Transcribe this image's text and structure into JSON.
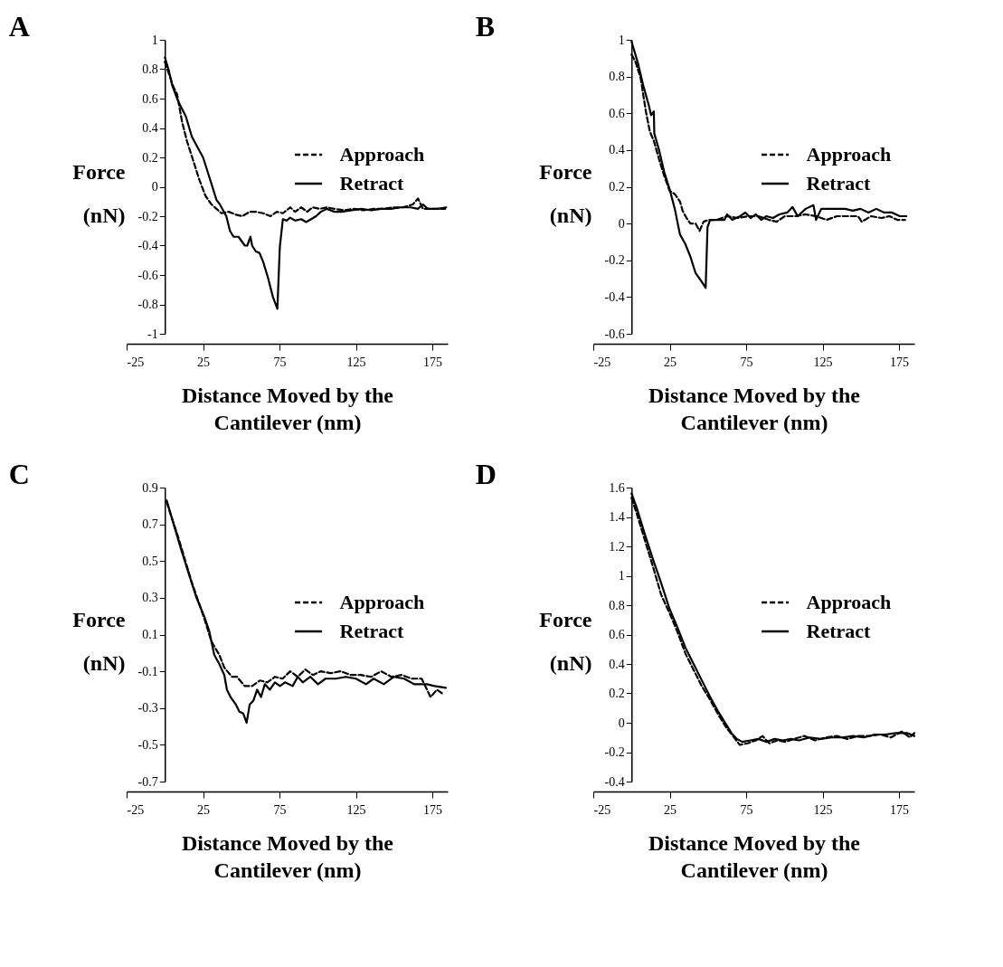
{
  "chart_data": [
    {
      "type": "line",
      "title": "A",
      "xlabel": "Distance Moved by the Cantilever (nm)",
      "ylabel": "Force (nN)",
      "xlim": [
        -25,
        185
      ],
      "xticks": [
        -25,
        25,
        75,
        125,
        175
      ],
      "ylim": [
        -1,
        1
      ],
      "yticks": [
        -1,
        -0.8,
        -0.6,
        -0.4,
        -0.2,
        0,
        0.2,
        0.4,
        0.6,
        0.8,
        1
      ],
      "legend": "right",
      "series": [
        {
          "name": "Approach",
          "color": "#000000",
          "line_style": "dashed",
          "x": [
            0,
            5.6,
            8,
            11.3,
            14.5,
            18.5,
            22.5,
            26.5,
            30.5,
            33.8,
            37,
            41.8,
            46.6,
            50.6,
            55.5,
            59.5,
            64.3,
            69.1,
            73.2,
            77.2,
            82,
            85.2,
            89.2,
            93.2,
            96.5,
            101.3,
            106,
            111,
            117.4,
            123.8,
            130,
            136.5,
            143,
            149.4,
            155.8,
            162.2,
            165.6,
            168.8,
            175,
            183.3
          ],
          "values": [
            0.85,
            0.68,
            0.63,
            0.44,
            0.31,
            0.18,
            0.05,
            -0.06,
            -0.12,
            -0.15,
            -0.18,
            -0.17,
            -0.19,
            -0.2,
            -0.17,
            -0.17,
            -0.18,
            -0.2,
            -0.17,
            -0.18,
            -0.14,
            -0.17,
            -0.14,
            -0.17,
            -0.14,
            -0.15,
            -0.14,
            -0.15,
            -0.16,
            -0.15,
            -0.16,
            -0.15,
            -0.15,
            -0.14,
            -0.14,
            -0.12,
            -0.08,
            -0.15,
            -0.15,
            -0.15
          ]
        },
        {
          "name": "Retract",
          "color": "#000000",
          "line_style": "solid",
          "x": [
            0,
            2.4,
            4.8,
            8.8,
            13.7,
            17.7,
            25,
            30.5,
            33.8,
            36,
            40.2,
            42.6,
            45,
            48.2,
            52.3,
            53.9,
            56,
            57.1,
            59.5,
            61.9,
            64.3,
            67.5,
            70.7,
            73.6,
            75.2,
            77.2,
            79.6,
            82,
            85.2,
            89.2,
            92.4,
            95.7,
            98.9,
            102,
            106,
            111,
            115.8,
            122.2,
            128.6,
            135,
            141.5,
            147.9,
            154.3,
            160.8,
            165.6,
            168.8,
            172,
            178.5,
            184
          ],
          "values": [
            0.88,
            0.8,
            0.69,
            0.58,
            0.48,
            0.34,
            0.2,
            0.02,
            -0.09,
            -0.12,
            -0.2,
            -0.3,
            -0.34,
            -0.34,
            -0.4,
            -0.4,
            -0.34,
            -0.4,
            -0.44,
            -0.45,
            -0.51,
            -0.62,
            -0.75,
            -0.83,
            -0.41,
            -0.22,
            -0.23,
            -0.21,
            -0.23,
            -0.22,
            -0.24,
            -0.22,
            -0.2,
            -0.17,
            -0.15,
            -0.17,
            -0.17,
            -0.16,
            -0.15,
            -0.16,
            -0.15,
            -0.15,
            -0.14,
            -0.14,
            -0.15,
            -0.12,
            -0.15,
            -0.15,
            -0.14
          ]
        }
      ]
    },
    {
      "type": "line",
      "title": "B",
      "xlabel": "Distance Moved by the Cantilever (nm)",
      "ylabel": "Force (nN)",
      "xlim": [
        -25,
        185
      ],
      "xticks": [
        -25,
        25,
        75,
        125,
        175
      ],
      "ylim": [
        -0.6,
        1
      ],
      "yticks": [
        -0.6,
        -0.4,
        -0.2,
        0,
        0.2,
        0.4,
        0.6,
        0.8,
        1
      ],
      "legend": "right",
      "series": [
        {
          "name": "Approach",
          "color": "#000000",
          "line_style": "dashed",
          "x": [
            0,
            2.6,
            6,
            9.4,
            12,
            14.6,
            18,
            21.4,
            24.8,
            28.3,
            31.7,
            33.4,
            36,
            38.5,
            41.9,
            44.5,
            47.1,
            50.5,
            55.7,
            62.5,
            69.3,
            76.2,
            83,
            89.9,
            95,
            100.2,
            107,
            113.9,
            120.7,
            127.6,
            134.4,
            141.3,
            148.1,
            150.6,
            156.7,
            163.5,
            168.7,
            173.8,
            179
          ],
          "values": [
            0.92,
            0.88,
            0.79,
            0.61,
            0.5,
            0.45,
            0.35,
            0.26,
            0.18,
            0.16,
            0.12,
            0.07,
            0.03,
            0,
            0,
            -0.04,
            0.01,
            0.02,
            0.02,
            0.04,
            0.03,
            0.04,
            0.04,
            0.02,
            0.01,
            0.04,
            0.04,
            0.05,
            0.04,
            0.02,
            0.04,
            0.04,
            0.04,
            0.01,
            0.04,
            0.03,
            0.04,
            0.02,
            0.02
          ]
        },
        {
          "name": "Retract",
          "color": "#000000",
          "line_style": "solid",
          "x": [
            0,
            4.3,
            7.7,
            11.1,
            12.8,
            14.6,
            14.9,
            18,
            21.4,
            24.8,
            28.3,
            31.7,
            35.1,
            38.5,
            41.9,
            45.4,
            48.5,
            49.7,
            51.4,
            55.7,
            60.8,
            62.5,
            65.9,
            71,
            74.5,
            77.9,
            81.3,
            84.8,
            88.2,
            92.5,
            96.7,
            101.9,
            105.3,
            108.7,
            113.9,
            119,
            120.7,
            124.1,
            129.3,
            134.4,
            139.6,
            144.7,
            149.8,
            155,
            160.1,
            165.2,
            170.4,
            175.5,
            179.8
          ],
          "values": [
            0.99,
            0.87,
            0.75,
            0.65,
            0.59,
            0.61,
            0.49,
            0.4,
            0.28,
            0.19,
            0.08,
            -0.06,
            -0.11,
            -0.18,
            -0.27,
            -0.31,
            -0.35,
            -0.02,
            0.02,
            0.02,
            0.02,
            0.05,
            0.02,
            0.04,
            0.06,
            0.03,
            0.05,
            0.02,
            0.04,
            0.03,
            0.05,
            0.06,
            0.09,
            0.04,
            0.08,
            0.1,
            0.02,
            0.08,
            0.08,
            0.08,
            0.08,
            0.07,
            0.08,
            0.06,
            0.08,
            0.06,
            0.06,
            0.04,
            0.04
          ]
        }
      ]
    },
    {
      "type": "line",
      "title": "C",
      "xlabel": "Distance Moved by the Cantilever (nm)",
      "ylabel": "Force (nN)",
      "xlim": [
        -25,
        185
      ],
      "xticks": [
        -25,
        25,
        75,
        125,
        175
      ],
      "ylim": [
        -0.7,
        0.9
      ],
      "yticks": [
        -0.7,
        -0.5,
        -0.3,
        -0.1,
        0.1,
        0.3,
        0.5,
        0.7,
        0.9
      ],
      "legend": "right",
      "series": [
        {
          "name": "Approach",
          "color": "#000000",
          "line_style": "dashed",
          "x": [
            1.2,
            9.1,
            17.4,
            25.7,
            30.6,
            35.6,
            38.9,
            43.9,
            47.2,
            52.2,
            57.1,
            62.1,
            67,
            72,
            77,
            82,
            86.9,
            91.9,
            96.9,
            101.8,
            108.4,
            115,
            121.7,
            128.3,
            134.9,
            141.5,
            148.2,
            154.8,
            161.4,
            168,
            173.8,
            178,
            181.3
          ],
          "values": [
            0.82,
            0.62,
            0.39,
            0.19,
            0.06,
            -0.01,
            -0.08,
            -0.13,
            -0.13,
            -0.18,
            -0.18,
            -0.15,
            -0.16,
            -0.13,
            -0.14,
            -0.1,
            -0.13,
            -0.09,
            -0.12,
            -0.1,
            -0.11,
            -0.1,
            -0.12,
            -0.12,
            -0.13,
            -0.1,
            -0.13,
            -0.12,
            -0.14,
            -0.14,
            -0.24,
            -0.2,
            -0.22
          ]
        },
        {
          "name": "Retract",
          "color": "#000000",
          "line_style": "solid",
          "x": [
            1.2,
            5.8,
            10.8,
            15.7,
            20.7,
            25.7,
            29,
            32.3,
            35.6,
            38.9,
            40.6,
            43,
            46.4,
            48.8,
            51.3,
            53.5,
            55.5,
            57.9,
            60.4,
            62.9,
            65.4,
            68.7,
            72,
            75.3,
            78.6,
            83.6,
            86.9,
            90.2,
            95.2,
            100.2,
            105.1,
            111.8,
            118.4,
            125,
            131.6,
            136.6,
            143.2,
            149.8,
            156.5,
            163.1,
            171.4,
            176.3,
            183.8
          ],
          "values": [
            0.83,
            0.7,
            0.56,
            0.43,
            0.3,
            0.2,
            0.12,
            -0.01,
            -0.06,
            -0.12,
            -0.2,
            -0.24,
            -0.28,
            -0.32,
            -0.33,
            -0.38,
            -0.28,
            -0.26,
            -0.2,
            -0.24,
            -0.17,
            -0.2,
            -0.16,
            -0.18,
            -0.16,
            -0.18,
            -0.13,
            -0.16,
            -0.13,
            -0.17,
            -0.14,
            -0.14,
            -0.13,
            -0.14,
            -0.17,
            -0.14,
            -0.17,
            -0.13,
            -0.14,
            -0.17,
            -0.17,
            -0.18,
            -0.19
          ]
        }
      ]
    },
    {
      "type": "line",
      "title": "D",
      "xlabel": "Distance Moved by the Cantilever (nm)",
      "ylabel": "Force (nN)",
      "xlim": [
        -25,
        185
      ],
      "xticks": [
        -25,
        25,
        75,
        125,
        175
      ],
      "ylim": [
        -0.4,
        1.6
      ],
      "yticks": [
        -0.4,
        -0.2,
        0,
        0.2,
        0.4,
        0.6,
        0.8,
        1,
        1.2,
        1.4,
        1.6
      ],
      "legend": "right",
      "series": [
        {
          "name": "Approach",
          "color": "#000000",
          "line_style": "dashed",
          "x": [
            0,
            3.5,
            8.8,
            14.1,
            19.4,
            24.7,
            30,
            35.3,
            40.6,
            45.9,
            51.2,
            56.5,
            61.8,
            67.1,
            70.7,
            75.9,
            81.3,
            85.7,
            90.1,
            95.4,
            100.7,
            106,
            113.1,
            120.1,
            127.2,
            134.3,
            141.3,
            148.4,
            155.5,
            162.5,
            169.6,
            176.7,
            182,
            185
          ],
          "values": [
            1.53,
            1.42,
            1.24,
            1.06,
            0.87,
            0.75,
            0.62,
            0.47,
            0.36,
            0.25,
            0.16,
            0.06,
            -0.03,
            -0.1,
            -0.15,
            -0.14,
            -0.12,
            -0.09,
            -0.14,
            -0.12,
            -0.13,
            -0.11,
            -0.09,
            -0.12,
            -0.1,
            -0.09,
            -0.11,
            -0.09,
            -0.09,
            -0.08,
            -0.1,
            -0.06,
            -0.1,
            -0.07
          ]
        },
        {
          "name": "Retract",
          "color": "#000000",
          "line_style": "solid",
          "x": [
            0,
            3.5,
            8.8,
            14.1,
            19.4,
            24.7,
            30,
            35.3,
            40.6,
            45.9,
            51.2,
            56.5,
            61.8,
            65.4,
            68.9,
            72.4,
            77.7,
            83,
            88.3,
            93.6,
            99,
            104.2,
            109.5,
            116.6,
            123.7,
            130.7,
            137.8,
            144.9,
            152,
            159,
            166.1,
            173.1,
            180.2,
            185
          ],
          "values": [
            1.56,
            1.46,
            1.28,
            1.11,
            0.95,
            0.78,
            0.65,
            0.51,
            0.4,
            0.29,
            0.18,
            0.08,
            -0.01,
            -0.07,
            -0.11,
            -0.13,
            -0.12,
            -0.11,
            -0.13,
            -0.11,
            -0.12,
            -0.11,
            -0.12,
            -0.1,
            -0.11,
            -0.1,
            -0.1,
            -0.09,
            -0.1,
            -0.08,
            -0.08,
            -0.07,
            -0.07,
            -0.09
          ]
        }
      ]
    }
  ]
}
